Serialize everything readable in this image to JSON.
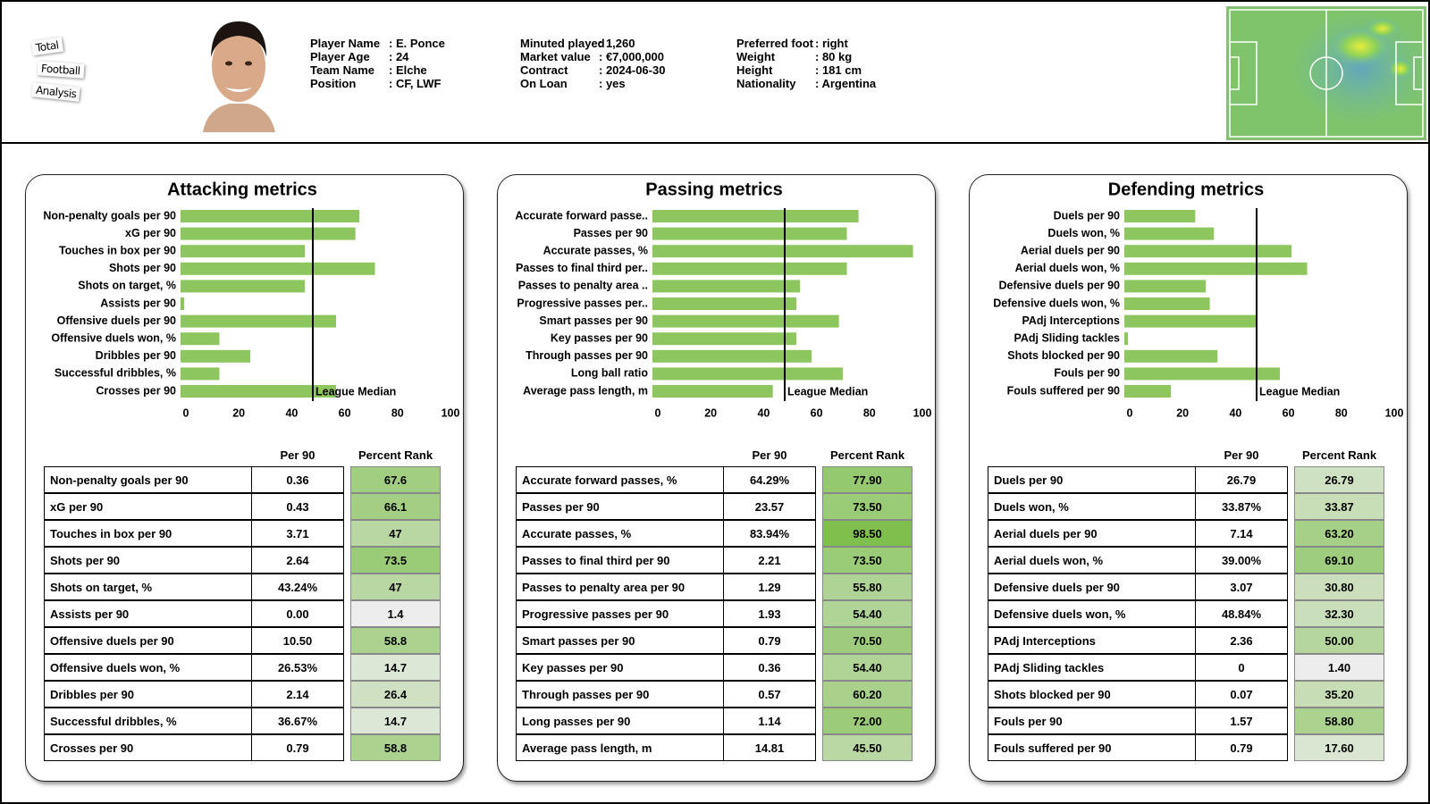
{
  "header": {
    "logo": [
      "Total",
      "Football",
      "Analysis"
    ],
    "info": [
      [
        {
          "label": "Player Name",
          "value": ": E. Ponce"
        },
        {
          "label": "Player Age",
          "value": ": 24"
        },
        {
          "label": "Team Name",
          "value": ": Elche"
        },
        {
          "label": "Position",
          "value": ": CF, LWF"
        }
      ],
      [
        {
          "label": "Minuted played",
          "value": ": 1,260"
        },
        {
          "label": "Market value",
          "value": ": €7,000,000"
        },
        {
          "label": "Contract",
          "value": ": 2024-06-30"
        },
        {
          "label": "On Loan",
          "value": ": yes"
        }
      ],
      [
        {
          "label": "Preferred foot",
          "value": ": right"
        },
        {
          "label": "Weight",
          "value": ": 80 kg"
        },
        {
          "label": "Height",
          "value": ": 181 cm"
        },
        {
          "label": "Nationality",
          "value": ": Argentina"
        }
      ]
    ]
  },
  "chart_data": [
    {
      "type": "bar",
      "orientation": "horizontal",
      "title": "Attacking metrics",
      "categories": [
        "Non-penalty goals per 90",
        "xG per 90",
        "Touches in box per 90",
        "Shots per 90",
        "Shots on target, %",
        "Assists per 90",
        "Offensive duels per 90",
        "Offensive duels won, %",
        "Dribbles per 90",
        "Successful dribbles, %",
        "Crosses per 90"
      ],
      "values": [
        67.6,
        66.1,
        47,
        73.5,
        47,
        1.4,
        58.8,
        14.7,
        26.4,
        14.7,
        58.8
      ],
      "color": "#8dc65e",
      "xlim": [
        0,
        100
      ],
      "xticks": [
        0,
        20,
        40,
        60,
        80,
        100
      ],
      "median": 50,
      "median_label": "League Median"
    },
    {
      "type": "bar",
      "orientation": "horizontal",
      "title": "Passing metrics",
      "categories": [
        "Accurate forward passe..",
        "Passes per 90",
        "Accurate passes, %",
        "Passes to final third per..",
        "Passes to penalty area ..",
        "Progressive passes per..",
        "Smart passes per 90",
        "Key passes per 90",
        "Through passes per 90",
        "Long ball ratio",
        "Average pass length, m"
      ],
      "values": [
        77.9,
        73.5,
        98.5,
        73.5,
        55.8,
        54.4,
        70.5,
        54.4,
        60.2,
        72,
        45.5
      ],
      "color": "#8dc65e",
      "xlim": [
        0,
        100
      ],
      "xticks": [
        0,
        20,
        40,
        60,
        80,
        100
      ],
      "median": 50,
      "median_label": "League Median"
    },
    {
      "type": "bar",
      "orientation": "horizontal",
      "title": "Defending metrics",
      "categories": [
        "Duels per 90",
        "Duels won, %",
        "Aerial duels per 90",
        "Aerial duels won, %",
        "Defensive duels per 90",
        "Defensive duels won, %",
        "PAdj Interceptions",
        "PAdj Sliding tackles",
        "Shots blocked per 90",
        "Fouls per 90",
        "Fouls suffered per 90"
      ],
      "values": [
        26.79,
        33.87,
        63.2,
        69.1,
        30.8,
        32.3,
        50,
        1.4,
        35.2,
        58.8,
        17.6
      ],
      "color": "#8dc65e",
      "xlim": [
        0,
        100
      ],
      "xticks": [
        0,
        20,
        40,
        60,
        80,
        100
      ],
      "median": 50,
      "median_label": "League Median"
    }
  ],
  "tables": [
    {
      "columns": [
        "Per 90",
        "Percent Rank"
      ],
      "rows": [
        [
          "Non-penalty goals per 90",
          "0.36",
          "67.6"
        ],
        [
          "xG per 90",
          "0.43",
          "66.1"
        ],
        [
          "Touches in box per 90",
          "3.71",
          "47"
        ],
        [
          "Shots per 90",
          "2.64",
          "73.5"
        ],
        [
          "Shots on target, %",
          "43.24%",
          "47"
        ],
        [
          "Assists per 90",
          "0.00",
          "1.4"
        ],
        [
          "Offensive duels per 90",
          "10.50",
          "58.8"
        ],
        [
          "Offensive duels won, %",
          "26.53%",
          "14.7"
        ],
        [
          "Dribbles per 90",
          "2.14",
          "26.4"
        ],
        [
          "Successful dribbles, %",
          "36.67%",
          "14.7"
        ],
        [
          "Crosses per 90",
          "0.79",
          "58.8"
        ]
      ]
    },
    {
      "columns": [
        "Per 90",
        "Percent Rank"
      ],
      "rows": [
        [
          "Accurate forward passes, %",
          "64.29%",
          "77.90"
        ],
        [
          "Passes per 90",
          "23.57",
          "73.50"
        ],
        [
          "Accurate passes, %",
          "83.94%",
          "98.50"
        ],
        [
          "Passes to final third per 90",
          "2.21",
          "73.50"
        ],
        [
          "Passes to penalty area per 90",
          "1.29",
          "55.80"
        ],
        [
          "Progressive passes per 90",
          "1.93",
          "54.40"
        ],
        [
          "Smart passes per 90",
          "0.79",
          "70.50"
        ],
        [
          "Key passes per 90",
          "0.36",
          "54.40"
        ],
        [
          "Through passes per 90",
          "0.57",
          "60.20"
        ],
        [
          "Long passes per 90",
          "1.14",
          "72.00"
        ],
        [
          "Average pass length, m",
          "14.81",
          "45.50"
        ]
      ]
    },
    {
      "columns": [
        "Per 90",
        "Percent Rank"
      ],
      "rows": [
        [
          "Duels per 90",
          "26.79",
          "26.79"
        ],
        [
          "Duels won, %",
          "33.87%",
          "33.87"
        ],
        [
          "Aerial duels per 90",
          "7.14",
          "63.20"
        ],
        [
          "Aerial duels won, %",
          "39.00%",
          "69.10"
        ],
        [
          "Defensive duels per 90",
          "3.07",
          "30.80"
        ],
        [
          "Defensive duels won, %",
          "48.84%",
          "32.30"
        ],
        [
          "PAdj Interceptions",
          "2.36",
          "50.00"
        ],
        [
          "PAdj Sliding tackles",
          "0",
          "1.40"
        ],
        [
          "Shots blocked per 90",
          "0.07",
          "35.20"
        ],
        [
          "Fouls per 90",
          "1.57",
          "58.80"
        ],
        [
          "Fouls suffered per 90",
          "0.79",
          "17.60"
        ]
      ]
    }
  ]
}
